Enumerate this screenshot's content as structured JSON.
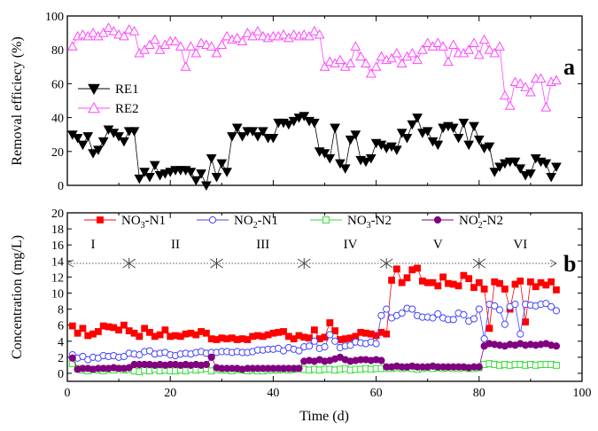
{
  "chart_data": [
    {
      "panel_label": "a",
      "type": "line",
      "ylabel": "Removal efficiecy (%)",
      "xlabel": "",
      "xlim": [
        0,
        100
      ],
      "ylim": [
        0,
        100
      ],
      "yticks": [
        0,
        20,
        40,
        60,
        80,
        100
      ],
      "legend_placement": "middle-left",
      "x": [
        1,
        2,
        3,
        4,
        5,
        6,
        7,
        8,
        9,
        10,
        11,
        12,
        13,
        14,
        15,
        16,
        17,
        18,
        19,
        20,
        21,
        22,
        23,
        24,
        25,
        26,
        27,
        28,
        29,
        30,
        31,
        32,
        33,
        34,
        35,
        36,
        37,
        38,
        39,
        40,
        41,
        42,
        43,
        44,
        45,
        46,
        47,
        48,
        49,
        50,
        51,
        52,
        53,
        54,
        55,
        56,
        57,
        58,
        59,
        60,
        61,
        62,
        63,
        64,
        65,
        66,
        67,
        68,
        69,
        70,
        71,
        72,
        73,
        74,
        75,
        76,
        77,
        78,
        79,
        80,
        81,
        82,
        83,
        84,
        85,
        86,
        87,
        88,
        89,
        90,
        91,
        92,
        93,
        94,
        95
      ],
      "series": [
        {
          "name": "RE1",
          "color": "#000000",
          "marker": "triangle-down-filled",
          "values": [
            30,
            28,
            24,
            29,
            19,
            21,
            26,
            33,
            31,
            29,
            26,
            32,
            32,
            4,
            8,
            5,
            12,
            6,
            7,
            8,
            9,
            9,
            9,
            8,
            3,
            7,
            0,
            16,
            5,
            13,
            8,
            29,
            34,
            29,
            32,
            32,
            29,
            32,
            28,
            28,
            37,
            37,
            36,
            38,
            40,
            41,
            38,
            37,
            20,
            19,
            16,
            34,
            13,
            10,
            27,
            30,
            15,
            14,
            16,
            25,
            24,
            22,
            23,
            21,
            31,
            28,
            36,
            40,
            31,
            32,
            26,
            24,
            34,
            35,
            34,
            28,
            37,
            24,
            35,
            27,
            22,
            23,
            8,
            11,
            13,
            14,
            14,
            10,
            6,
            7,
            16,
            14,
            13,
            5,
            11
          ]
        },
        {
          "name": "RE2",
          "color": "#ff44ff",
          "marker": "triangle-up-open",
          "values": [
            82,
            88,
            89,
            88,
            90,
            88,
            90,
            93,
            91,
            89,
            88,
            92,
            91,
            78,
            80,
            83,
            86,
            80,
            83,
            85,
            85,
            82,
            70,
            82,
            78,
            84,
            83,
            82,
            78,
            83,
            88,
            86,
            87,
            85,
            90,
            88,
            91,
            88,
            87,
            88,
            88,
            89,
            87,
            89,
            88,
            89,
            88,
            91,
            89,
            70,
            73,
            72,
            74,
            70,
            72,
            82,
            76,
            72,
            66,
            70,
            76,
            74,
            75,
            78,
            72,
            76,
            78,
            74,
            80,
            84,
            82,
            84,
            82,
            73,
            83,
            78,
            78,
            80,
            84,
            77,
            86,
            80,
            78,
            82,
            53,
            47,
            61,
            60,
            58,
            55,
            63,
            63,
            46,
            61,
            62
          ]
        }
      ]
    },
    {
      "panel_label": "b",
      "type": "line",
      "ylabel": "Concentration (mg/L)",
      "xlabel": "Time (d)",
      "xlim": [
        0,
        100
      ],
      "ylim": [
        -1,
        20
      ],
      "xticks": [
        0,
        20,
        40,
        60,
        80,
        100
      ],
      "yticks": [
        0,
        2,
        4,
        6,
        8,
        10,
        12,
        14,
        16,
        18,
        20
      ],
      "legend_placement": "top",
      "phases": {
        "labels": [
          "I",
          "II",
          "III",
          "IV",
          "V",
          "VI"
        ],
        "label_x": [
          5,
          21,
          38,
          55,
          72,
          88
        ],
        "boundaries": [
          12,
          29,
          46,
          62,
          80
        ],
        "span": [
          0,
          95
        ],
        "level": 13.7
      },
      "x": [
        1,
        2,
        3,
        4,
        5,
        6,
        7,
        8,
        9,
        10,
        11,
        12,
        13,
        14,
        15,
        16,
        17,
        18,
        19,
        20,
        21,
        22,
        23,
        24,
        25,
        26,
        27,
        28,
        29,
        30,
        31,
        32,
        33,
        34,
        35,
        36,
        37,
        38,
        39,
        40,
        41,
        42,
        43,
        44,
        45,
        46,
        47,
        48,
        49,
        50,
        51,
        52,
        53,
        54,
        55,
        56,
        57,
        58,
        59,
        60,
        61,
        62,
        63,
        64,
        65,
        66,
        67,
        68,
        69,
        70,
        71,
        72,
        73,
        74,
        75,
        76,
        77,
        78,
        79,
        80,
        81,
        82,
        83,
        84,
        85,
        86,
        87,
        88,
        89,
        90,
        91,
        92,
        93,
        94,
        95
      ],
      "series": [
        {
          "name": "NO3-N1",
          "name_parts": [
            "NO",
            "3",
            "-N1"
          ],
          "color": "#ff0000",
          "marker": "square-filled",
          "values": [
            5.9,
            5,
            5.6,
            4.7,
            4.9,
            5.2,
            5.9,
            5.8,
            5.7,
            5.4,
            6,
            5.3,
            5,
            4.6,
            5.6,
            5.1,
            4.6,
            4.8,
            5.4,
            4.6,
            4.7,
            4.6,
            4.9,
            5,
            4.8,
            5.2,
            5,
            4.3,
            4.2,
            4.4,
            4.3,
            4.4,
            4.2,
            4.3,
            4.2,
            4.6,
            4.7,
            4.6,
            4.8,
            5,
            5.1,
            5.2,
            4.6,
            4.3,
            4.7,
            4.5,
            4.4,
            5.4,
            4.3,
            4.5,
            6.3,
            5.3,
            4.2,
            4.3,
            4.4,
            4.6,
            5.1,
            5,
            4.9,
            4.7,
            5.1,
            4.9,
            11.6,
            13,
            11.3,
            11.9,
            12.9,
            13.1,
            11.5,
            11.3,
            11.3,
            10.9,
            12,
            11.2,
            11.1,
            10.9,
            12.2,
            11.8,
            10.7,
            11.3,
            10.5,
            5.6,
            11.4,
            11.2,
            10.5,
            8,
            11.1,
            11.5,
            6.4,
            11.4,
            10.8,
            11.3,
            11,
            11.4,
            10.4
          ]
        },
        {
          "name": "NO2-N1",
          "name_parts": [
            "NO",
            "2",
            "-N1"
          ],
          "color": "#4444ff",
          "marker": "circle-open",
          "values": [
            2.3,
            1.9,
            2.1,
            1.7,
            2,
            1.9,
            2.2,
            2.1,
            2.2,
            2,
            2.1,
            2.5,
            2.4,
            2.3,
            2.7,
            2.8,
            2.4,
            2.5,
            2.6,
            2.3,
            2.2,
            2.4,
            2.5,
            2.4,
            2.6,
            2.7,
            2.5,
            2.6,
            2.6,
            2.7,
            2.7,
            2.6,
            2.7,
            2.6,
            2.6,
            2.7,
            2.9,
            2.9,
            3,
            3,
            3.1,
            2.8,
            3.2,
            3,
            2.8,
            3.3,
            3.4,
            4,
            3.1,
            3.3,
            4.8,
            4,
            3.2,
            3.4,
            3.5,
            3.9,
            3.8,
            3.7,
            3.9,
            3.7,
            7.2,
            8,
            6.9,
            7.2,
            7.5,
            8.1,
            8,
            7.2,
            7,
            7,
            6.9,
            7.4,
            6.9,
            6.7,
            6.7,
            7.5,
            7.3,
            6.5,
            6.8,
            8,
            4.3,
            8.6,
            8.4,
            7.9,
            6.1,
            8.3,
            8.6,
            4.9,
            8.6,
            8.5,
            8.4,
            8.6,
            8.7,
            8.3,
            7.8
          ]
        },
        {
          "name": "NO3-N2",
          "name_parts": [
            "NO",
            "3",
            "-N2"
          ],
          "color": "#33dd33",
          "marker": "square-open",
          "values": [
            1.2,
            0.6,
            0.4,
            0.3,
            0.5,
            0.4,
            0.3,
            0.5,
            0.4,
            0.6,
            0.4,
            0.5,
            0.3,
            0.2,
            0.4,
            0.3,
            0.5,
            0.3,
            0.4,
            0.3,
            0.3,
            0.4,
            0.3,
            0.5,
            0.4,
            0.5,
            0.6,
            0.3,
            0.5,
            0.4,
            0.4,
            0.3,
            0.5,
            0.4,
            0.3,
            0.4,
            0.3,
            0.3,
            0.4,
            0.4,
            0.4,
            0.5,
            0.4,
            0.5,
            0.6,
            0.5,
            0.4,
            0.5,
            0.4,
            0.5,
            0.5,
            0.4,
            0.5,
            0.6,
            0.4,
            0.5,
            0.5,
            0.6,
            0.5,
            0.6,
            0.6,
            0.6,
            0.6,
            0.7,
            0.6,
            0.7,
            0.6,
            0.5,
            0.6,
            0.7,
            0.6,
            0.7,
            0.6,
            0.7,
            0.6,
            0.6,
            0.7,
            0.6,
            0.6,
            0.7,
            1.1,
            1.2,
            1.1,
            1,
            1.1,
            1,
            1.1,
            1.1,
            1,
            1.1,
            1,
            1.1,
            1.1,
            1.1,
            1
          ]
        },
        {
          "name": "NO2-N2",
          "name_parts": [
            "NO",
            "2",
            "-N2"
          ],
          "color": "#800080",
          "marker": "circle-filled",
          "values": [
            1.9,
            0.5,
            0.6,
            0.6,
            0.5,
            0.6,
            0.6,
            0.6,
            0.7,
            0.6,
            0.6,
            0.7,
            1.1,
            1.1,
            1.1,
            1.1,
            1.0,
            1.1,
            1.0,
            1.1,
            1.1,
            1.0,
            1.1,
            1.0,
            1.1,
            1.0,
            1.1,
            2.0,
            0.7,
            0.6,
            0.6,
            0.6,
            0.6,
            0.5,
            0.6,
            0.6,
            0.6,
            0.6,
            0.6,
            0.6,
            0.6,
            0.6,
            0.6,
            0.6,
            0.6,
            1.5,
            1.6,
            1.5,
            1.7,
            1.5,
            1.6,
            1.8,
            2.0,
            1.7,
            1.5,
            1.6,
            1.7,
            1.7,
            1.6,
            1.7,
            1.6,
            0.8,
            0.8,
            0.9,
            0.8,
            0.8,
            0.9,
            0.8,
            0.8,
            0.8,
            0.9,
            0.8,
            0.8,
            0.8,
            0.8,
            0.8,
            0.8,
            0.7,
            0.8,
            0.8,
            3.4,
            3.7,
            3.6,
            3.5,
            3.4,
            3.6,
            3.5,
            3.7,
            3.5,
            3.6,
            3.5,
            3.6,
            3.7,
            3.5,
            3.4
          ]
        }
      ]
    }
  ]
}
